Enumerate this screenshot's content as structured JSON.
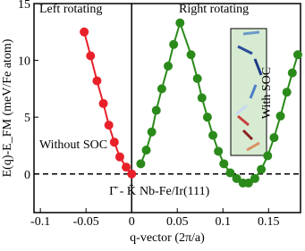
{
  "chart_data": {
    "type": "scatter",
    "xlabel": "q-vector (2π/a)",
    "ylabel": "E(q)-E_FM (meV/Fe atom)",
    "annotations": [
      "Left rotating",
      "Right rotating",
      "Without SOC",
      "Γ̄ - K̄",
      "Nb-Fe/Ir(111)",
      "With SOC"
    ],
    "xlim": [
      -0.107,
      0.185
    ],
    "ylim": [
      -3.4,
      15
    ],
    "xticks": [
      -0.1,
      -0.05,
      0,
      0.05,
      0.1,
      0.15
    ],
    "yticks": [
      0,
      5,
      10,
      15
    ],
    "series": [
      {
        "color": "#e8202a",
        "x": [
          -0.052,
          -0.045,
          -0.038,
          -0.031,
          -0.025,
          -0.019,
          -0.013,
          -0.006,
          0
        ],
        "values": [
          12.5,
          10.4,
          8.2,
          6.2,
          4.3,
          2.8,
          1.5,
          0.6,
          0
        ]
      },
      {
        "color": "#2a8a1a",
        "x": [
          0.01,
          0.016,
          0.022,
          0.027,
          0.033,
          0.04,
          0.046,
          0.053,
          0.065,
          0.072,
          0.077,
          0.083,
          0.089,
          0.095,
          0.101,
          0.108,
          0.115,
          0.122,
          0.128,
          0.135,
          0.142,
          0.149,
          0.156,
          0.163,
          0.17,
          0.176,
          0.182
        ],
        "values": [
          0.9,
          2.1,
          3.7,
          5.6,
          7.5,
          9.5,
          11.4,
          13.3,
          10.5,
          8.4,
          6.7,
          5,
          3.4,
          2,
          0.9,
          0.1,
          -0.4,
          -0.8,
          -0.8,
          -0.4,
          0.4,
          1.6,
          3.2,
          5.1,
          7.2,
          8.9,
          10.5
        ]
      }
    ]
  }
}
